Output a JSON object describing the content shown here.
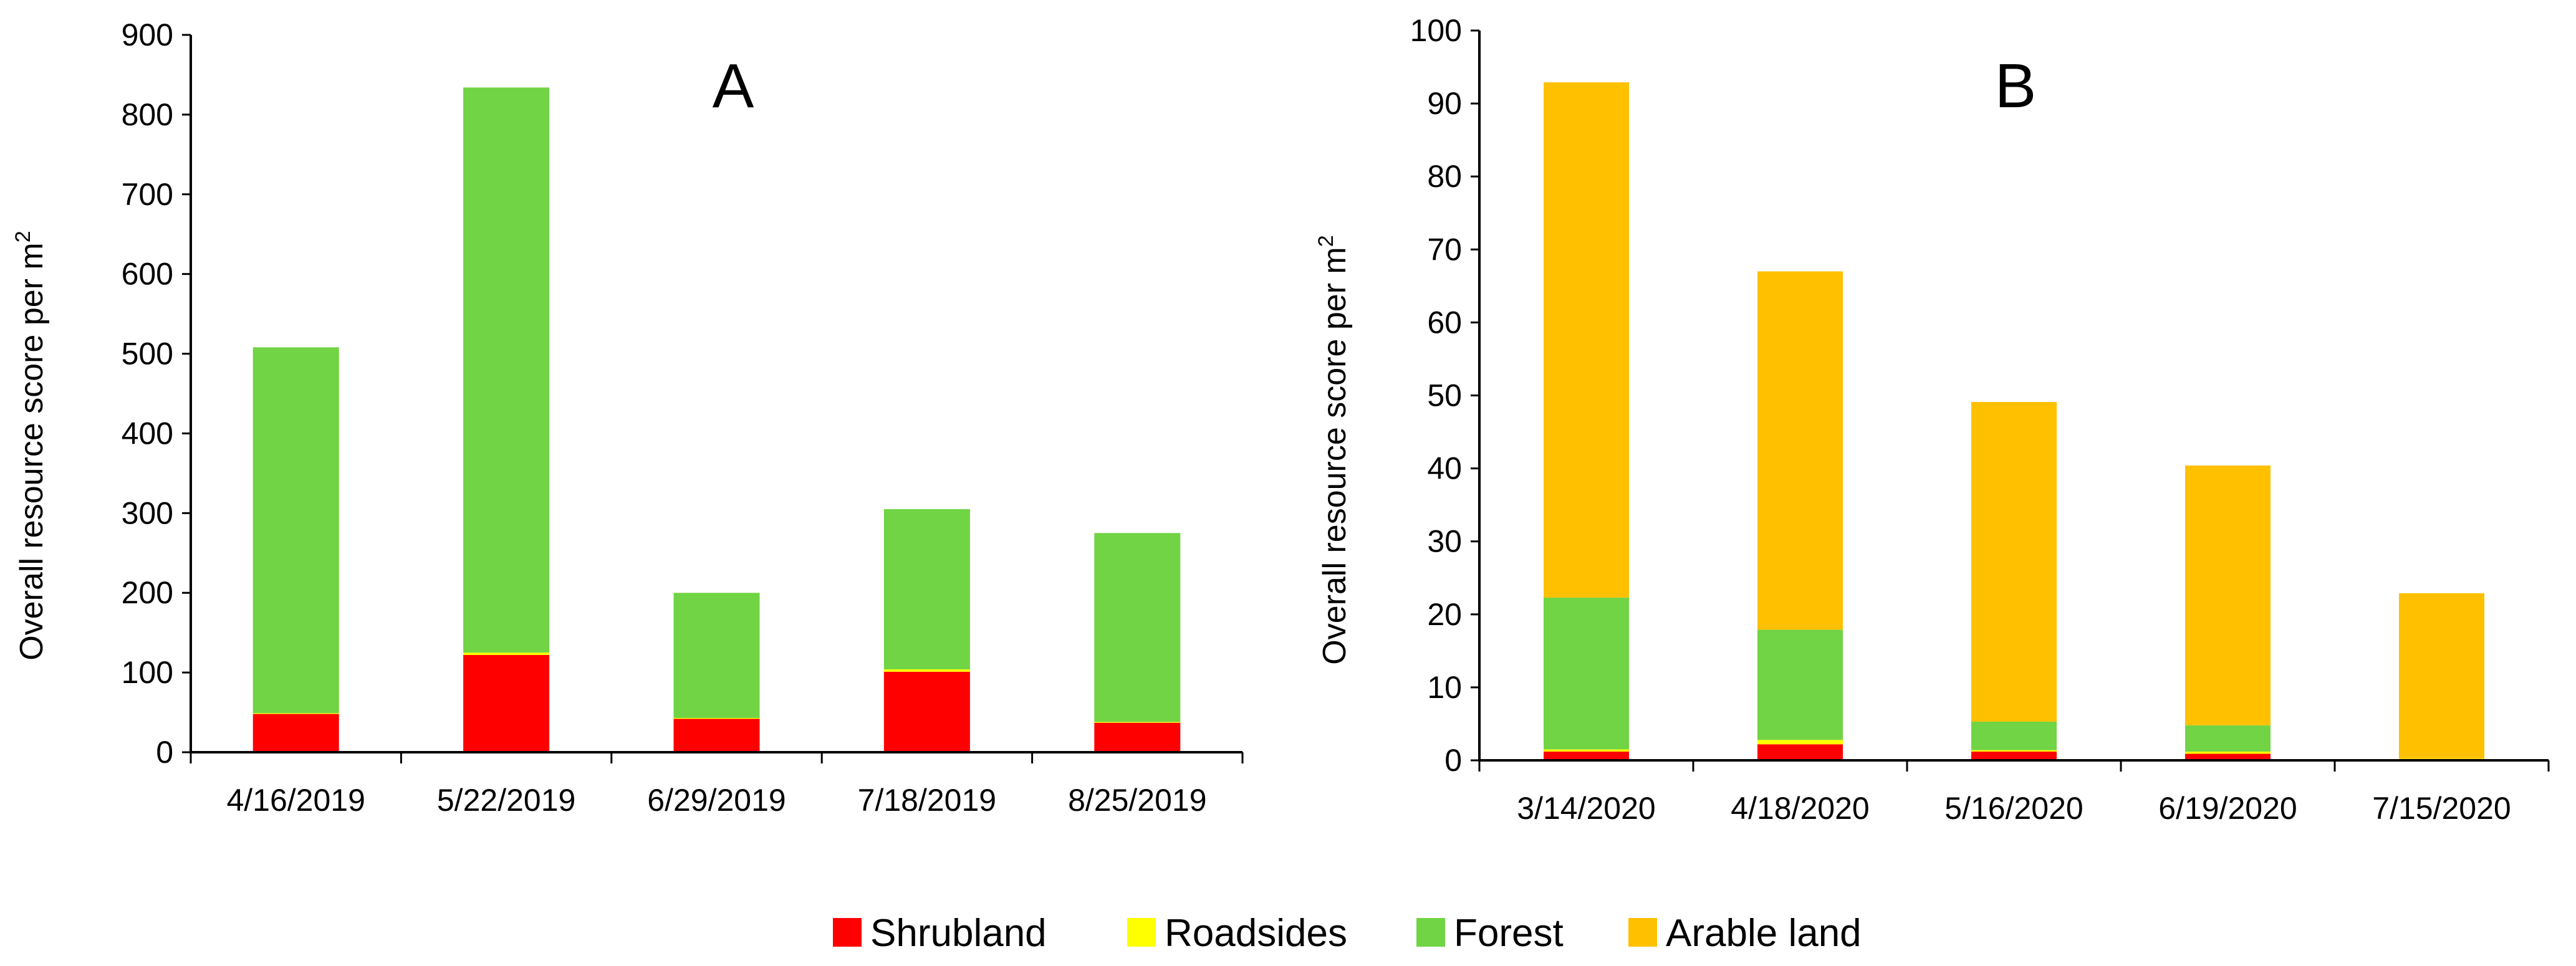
{
  "chart_data": [
    {
      "type": "bar",
      "stacked": true,
      "panel_label": "A",
      "title": "",
      "xlabel": "",
      "ylabel": "Overall resource score per m",
      "ylabel_superscript": "2",
      "ylim": [
        0,
        900
      ],
      "yticks": [
        0,
        100,
        200,
        300,
        400,
        500,
        600,
        700,
        800,
        900
      ],
      "categories": [
        "4/16/2019",
        "5/22/2019",
        "6/29/2019",
        "7/18/2019",
        "8/25/2019"
      ],
      "series": [
        {
          "name": "Shrubland",
          "values": [
            48,
            122,
            42,
            101,
            37
          ]
        },
        {
          "name": "Roadsides",
          "values": [
            1,
            3,
            1,
            3,
            1
          ]
        },
        {
          "name": "Forest",
          "values": [
            459,
            709,
            157,
            201,
            237
          ]
        },
        {
          "name": "Arable land",
          "values": [
            0,
            0,
            0,
            0,
            0
          ]
        }
      ]
    },
    {
      "type": "bar",
      "stacked": true,
      "panel_label": "B",
      "title": "",
      "xlabel": "",
      "ylabel": "Overall resource score per m",
      "ylabel_superscript": "2",
      "ylim": [
        0,
        100
      ],
      "yticks": [
        0,
        10,
        20,
        30,
        40,
        50,
        60,
        70,
        80,
        90,
        100
      ],
      "categories": [
        "3/14/2020",
        "4/18/2020",
        "5/16/2020",
        "6/19/2020",
        "7/15/2020"
      ],
      "series": [
        {
          "name": "Shrubland",
          "values": [
            1.2,
            2.2,
            1.2,
            0.9,
            0.2
          ]
        },
        {
          "name": "Roadsides",
          "values": [
            0.3,
            0.6,
            0.2,
            0.3,
            0.1
          ]
        },
        {
          "name": "Forest",
          "values": [
            20.8,
            15.1,
            3.9,
            3.6,
            0
          ]
        },
        {
          "name": "Arable land",
          "values": [
            70.6,
            49.1,
            43.8,
            35.6,
            22.6
          ]
        }
      ]
    }
  ],
  "legend": {
    "position": "bottom-center",
    "entries": [
      "Shrubland",
      "Roadsides",
      "Forest",
      "Arable land"
    ]
  },
  "colors": {
    "Shrubland": "#FF0000",
    "Roadsides": "#FFFF00",
    "Forest": "#70D444",
    "Arable land": "#FFC000"
  }
}
